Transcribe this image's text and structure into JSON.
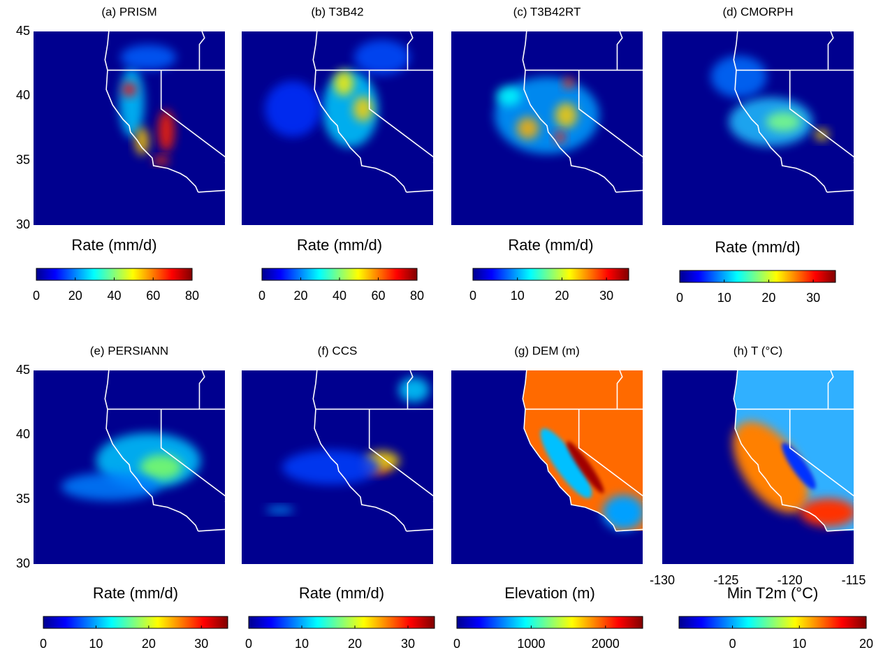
{
  "panels": [
    {
      "title": "(a) PRISM",
      "colorbar_label": "Rate (mm/d)",
      "clim": [
        0,
        80
      ],
      "cticks": [
        0,
        20,
        40,
        60,
        80
      ]
    },
    {
      "title": "(b) T3B42",
      "colorbar_label": "Rate (mm/d)",
      "clim": [
        0,
        80
      ],
      "cticks": [
        0,
        20,
        40,
        60,
        80
      ]
    },
    {
      "title": "(c) T3B42RT",
      "colorbar_label": "Rate (mm/d)",
      "clim": [
        0,
        35
      ],
      "cticks": [
        0,
        10,
        20,
        30
      ]
    },
    {
      "title": "(d) CMORPH",
      "colorbar_label": "Rate (mm/d)",
      "clim": [
        0,
        35
      ],
      "cticks": [
        0,
        10,
        20,
        30
      ]
    },
    {
      "title": "(e) PERSIANN",
      "colorbar_label": "Rate (mm/d)",
      "clim": [
        0,
        35
      ],
      "cticks": [
        0,
        10,
        20,
        30
      ]
    },
    {
      "title": "(f) CCS",
      "colorbar_label": "Rate (mm/d)",
      "clim": [
        0,
        35
      ],
      "cticks": [
        0,
        10,
        20,
        30
      ]
    },
    {
      "title": "(g) DEM (m)",
      "colorbar_label": "Elevation (m)",
      "clim": [
        0,
        2500
      ],
      "cticks": [
        0,
        1000,
        2000
      ]
    },
    {
      "title": "(h) T (°C)",
      "colorbar_label": "Min T2m (°C)",
      "clim": [
        -8,
        20
      ],
      "cticks": [
        0,
        10,
        20
      ]
    }
  ],
  "ylim": [
    30,
    45
  ],
  "yticks": [
    45,
    40,
    35,
    30
  ],
  "xlim": [
    -130,
    -115
  ],
  "xticks": [
    -130,
    -125,
    -120,
    -115
  ]
}
